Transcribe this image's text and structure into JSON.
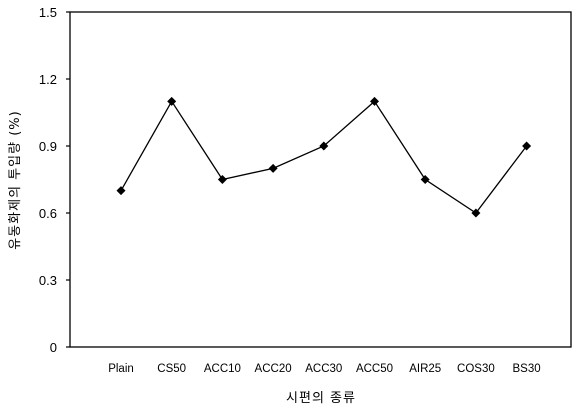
{
  "chart_data": {
    "type": "line",
    "title": "",
    "xlabel": "시편의 종류",
    "ylabel": "유동화제의 투입량 (%)",
    "categories": [
      "Plain",
      "CS50",
      "ACC10",
      "ACC20",
      "ACC30",
      "ACC50",
      "AIR25",
      "COS30",
      "BS30"
    ],
    "series": [
      {
        "values": [
          0.7,
          1.1,
          0.75,
          0.8,
          0.9,
          1.1,
          0.75,
          0.6,
          0.9
        ]
      }
    ],
    "ylim": [
      0,
      1.5
    ],
    "yticks": [
      "0",
      "0.3",
      "0.6",
      "0.9",
      "1.2",
      "1.5"
    ],
    "marker": "diamond",
    "line_color": "#000000",
    "grid": false,
    "legend": "none"
  }
}
